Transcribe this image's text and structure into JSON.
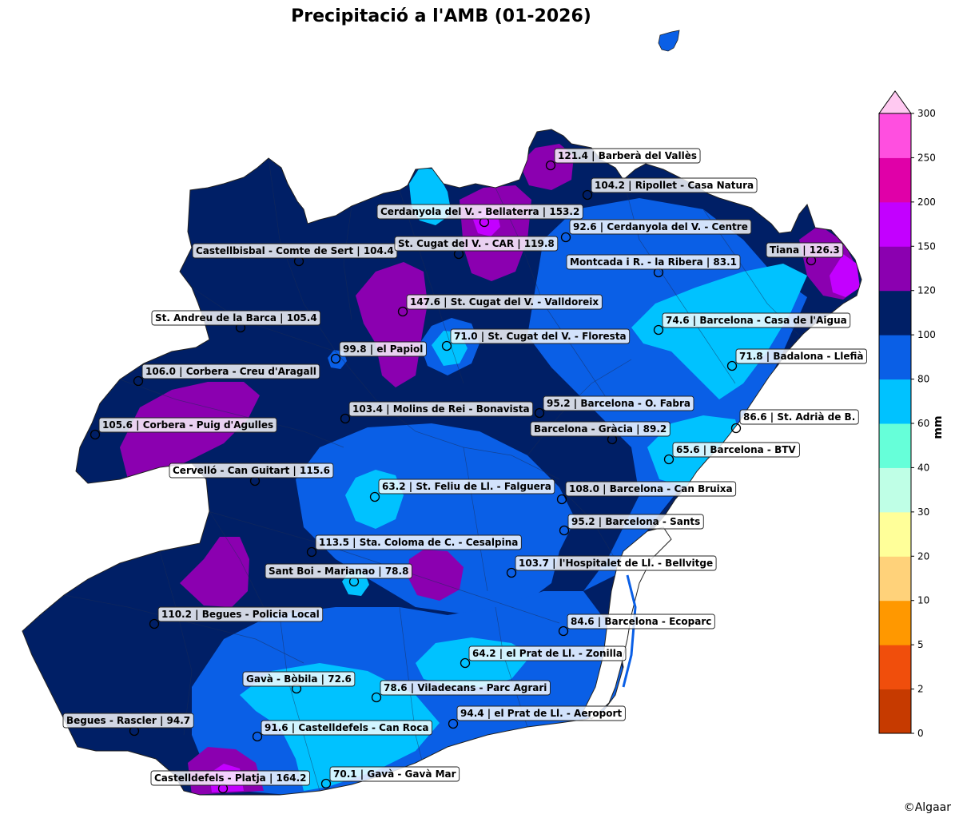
{
  "title": "Precipitació a l'AMB (01-2026)",
  "credit": "©Algaar",
  "colorbar": {
    "unit": "mm",
    "ticks": [
      "0",
      "2",
      "5",
      "10",
      "20",
      "30",
      "40",
      "60",
      "80",
      "100",
      "120",
      "150",
      "200",
      "250",
      "300"
    ],
    "levels": [
      0,
      2,
      5,
      10,
      20,
      30,
      40,
      60,
      80,
      100,
      120,
      150,
      200,
      250,
      300
    ],
    "colors": [
      "#c63a00",
      "#f04e0c",
      "#ff9800",
      "#ffd27a",
      "#ffff99",
      "#bfffe6",
      "#66ffd9",
      "#00c2ff",
      "#0a5fe6",
      "#001f66",
      "#8b00b0",
      "#c300ff",
      "#e000a8",
      "#ff4fe0"
    ],
    "extend_color": "#ffc9f1"
  },
  "stations": [
    {
      "label": "121.4 | Barberà del Vallès",
      "value": 121.4
    },
    {
      "label": "104.2 | Ripollet - Casa Natura",
      "value": 104.2
    },
    {
      "label": "Cerdanyola del V. - Bellaterra | 153.2",
      "value": 153.2
    },
    {
      "label": "92.6 | Cerdanyola del V. - Centre",
      "value": 92.6
    },
    {
      "label": "Castellbisbal - Comte de Sert | 104.4",
      "value": 104.4
    },
    {
      "label": "St. Cugat del V. - CAR | 119.8",
      "value": 119.8
    },
    {
      "label": "Tiana | 126.3",
      "value": 126.3
    },
    {
      "label": "Montcada i R. - la Ribera | 83.1",
      "value": 83.1
    },
    {
      "label": "147.6 | St. Cugat del V. - Valldoreix",
      "value": 147.6
    },
    {
      "label": "St. Andreu de la Barca | 105.4",
      "value": 105.4
    },
    {
      "label": "74.6 | Barcelona - Casa de l'Aigua",
      "value": 74.6
    },
    {
      "label": "71.0 | St. Cugat del V. - Floresta",
      "value": 71.0
    },
    {
      "label": "99.8 | el Papiol",
      "value": 99.8
    },
    {
      "label": "71.8 | Badalona - Llefià",
      "value": 71.8
    },
    {
      "label": "106.0 | Corbera - Creu d'Aragall",
      "value": 106.0
    },
    {
      "label": "95.2 | Barcelona - O. Fabra",
      "value": 95.2
    },
    {
      "label": "103.4 | Molins de Rei - Bonavista",
      "value": 103.4
    },
    {
      "label": "86.6 | St. Adrià de B.",
      "value": 86.6
    },
    {
      "label": "105.6 | Corbera - Puig d'Agulles",
      "value": 105.6
    },
    {
      "label": "Barcelona - Gràcia | 89.2",
      "value": 89.2
    },
    {
      "label": "65.6 | Barcelona - BTV",
      "value": 65.6
    },
    {
      "label": "Cervelló - Can Guitart | 115.6",
      "value": 115.6
    },
    {
      "label": "63.2 | St. Feliu de Ll. - Falguera",
      "value": 63.2
    },
    {
      "label": "108.0 | Barcelona - Can Bruixa",
      "value": 108.0
    },
    {
      "label": "95.2 | Barcelona - Sants",
      "value": 95.2
    },
    {
      "label": "113.5 | Sta. Coloma de C. - Cesalpina",
      "value": 113.5
    },
    {
      "label": "Sant Boi - Marianao | 78.8",
      "value": 78.8
    },
    {
      "label": "103.7 | l'Hospitalet de Ll. - Bellvitge",
      "value": 103.7
    },
    {
      "label": "110.2 | Begues - Policia Local",
      "value": 110.2
    },
    {
      "label": "84.6 | Barcelona - Ecoparc",
      "value": 84.6
    },
    {
      "label": "64.2 | el Prat de Ll. - Zonilla",
      "value": 64.2
    },
    {
      "label": "Gavà - Bòbila | 72.6",
      "value": 72.6
    },
    {
      "label": "78.6 | Viladecans - Parc Agrari",
      "value": 78.6
    },
    {
      "label": "94.4 | el Prat de Ll. - Aeroport",
      "value": 94.4
    },
    {
      "label": "Begues - Rascler | 94.7",
      "value": 94.7
    },
    {
      "label": "91.6 | Castelldefels - Can Roca",
      "value": 91.6
    },
    {
      "label": "70.1 | Gavà - Gavà Mar",
      "value": 70.1
    },
    {
      "label": "Castelldefels - Platja | 164.2",
      "value": 164.2
    }
  ]
}
